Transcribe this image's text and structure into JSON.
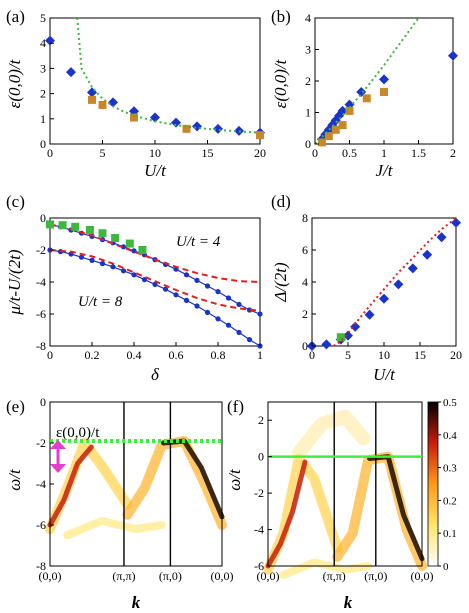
{
  "chart_data": [
    {
      "panel": "(a)",
      "type": "scatter",
      "xlabel": "U/t",
      "ylabel": "ε(0,0)/t",
      "xlim": [
        0,
        20
      ],
      "ylim": [
        0,
        5
      ],
      "xticks": [
        "0",
        "5",
        "10",
        "15",
        "20"
      ],
      "yticks": [
        "0",
        "1",
        "2",
        "3",
        "4",
        "5"
      ],
      "series": [
        {
          "marker": "diamond",
          "color": "#1a33c8",
          "x": [
            0,
            2,
            4,
            6,
            8,
            10,
            12,
            14,
            16,
            18,
            20
          ],
          "y": [
            4.1,
            2.85,
            2.05,
            1.65,
            1.3,
            1.05,
            0.85,
            0.7,
            0.6,
            0.52,
            0.45
          ]
        },
        {
          "marker": "square",
          "color": "#c8882a",
          "x": [
            4,
            5,
            8,
            13,
            20
          ],
          "y": [
            1.75,
            1.55,
            1.05,
            0.6,
            0.35
          ]
        },
        {
          "style": "dotted-line",
          "color": "#3cb83c",
          "x": [
            2.6,
            3,
            4,
            5,
            6,
            7,
            8,
            10,
            12,
            14,
            16,
            18,
            20
          ],
          "y": [
            5.0,
            3.0,
            2.25,
            1.8,
            1.5,
            1.29,
            1.13,
            0.9,
            0.75,
            0.64,
            0.56,
            0.5,
            0.45
          ]
        }
      ]
    },
    {
      "panel": "(b)",
      "type": "scatter",
      "xlabel": "J/t",
      "ylabel": "ε(0,0)/t",
      "xlim": [
        0,
        2
      ],
      "ylim": [
        0,
        4
      ],
      "xticks": [
        "0",
        "0.5",
        "1",
        "1.5",
        "2"
      ],
      "yticks": [
        "0",
        "1",
        "2",
        "3",
        "4"
      ],
      "series": [
        {
          "marker": "diamond",
          "color": "#1a33c8",
          "x": [
            0.1,
            0.15,
            0.2,
            0.25,
            0.3,
            0.35,
            0.4,
            0.5,
            0.67,
            1.0,
            2.0
          ],
          "y": [
            0.15,
            0.3,
            0.45,
            0.6,
            0.75,
            0.9,
            1.05,
            1.25,
            1.65,
            2.05,
            2.8
          ]
        },
        {
          "marker": "square",
          "color": "#c8882a",
          "x": [
            0.1,
            0.2,
            0.3,
            0.4,
            0.5,
            0.75,
            1.0
          ],
          "y": [
            0.05,
            0.25,
            0.45,
            0.6,
            1.05,
            1.45,
            1.65
          ]
        },
        {
          "style": "dotted-line",
          "color": "#3cb83c",
          "x": [
            0,
            0.25,
            0.5,
            0.75,
            1.0,
            1.25,
            1.5
          ],
          "y": [
            0,
            0.55,
            1.15,
            1.8,
            2.5,
            3.25,
            4.0
          ]
        }
      ]
    },
    {
      "panel": "(c)",
      "type": "line",
      "xlabel": "δ",
      "ylabel": "μ/t-U/(2t)",
      "xlim": [
        0,
        1
      ],
      "ylim": [
        -8,
        0
      ],
      "xticks": [
        "0",
        "0.2",
        "0.4",
        "0.6",
        "0.8",
        "1"
      ],
      "yticks": [
        "-8",
        "-6",
        "-4",
        "-2",
        "0"
      ],
      "annotations": [
        "U/t = 4",
        "U/t = 8"
      ],
      "series": [
        {
          "style": "line+points",
          "color": "#1a33c8",
          "x": [
            0,
            0.05,
            0.1,
            0.15,
            0.2,
            0.25,
            0.3,
            0.35,
            0.4,
            0.45,
            0.5,
            0.55,
            0.6,
            0.65,
            0.7,
            0.75,
            0.8,
            0.85,
            0.9,
            0.95,
            1.0
          ],
          "y": [
            -0.4,
            -0.55,
            -0.75,
            -0.95,
            -1.15,
            -1.35,
            -1.55,
            -1.8,
            -2.05,
            -2.3,
            -2.6,
            -2.9,
            -3.2,
            -3.55,
            -3.9,
            -4.25,
            -4.6,
            -5.0,
            -5.4,
            -5.75,
            -6.0
          ]
        },
        {
          "style": "line+points",
          "color": "#1a33c8",
          "x": [
            0,
            0.05,
            0.1,
            0.15,
            0.2,
            0.25,
            0.3,
            0.35,
            0.4,
            0.45,
            0.5,
            0.55,
            0.6,
            0.65,
            0.7,
            0.75,
            0.8,
            0.85,
            0.9,
            0.95,
            1.0
          ],
          "y": [
            -2.0,
            -2.1,
            -2.25,
            -2.45,
            -2.65,
            -2.85,
            -3.05,
            -3.3,
            -3.55,
            -3.85,
            -4.15,
            -4.45,
            -4.8,
            -5.15,
            -5.5,
            -5.9,
            -6.3,
            -6.7,
            -7.15,
            -7.6,
            -8.0
          ]
        },
        {
          "style": "dashed-line",
          "color": "#e02020",
          "x": [
            0,
            0.1,
            0.2,
            0.3,
            0.4,
            0.5,
            0.6,
            0.7,
            0.8,
            0.9,
            1.0
          ],
          "y": [
            -0.4,
            -0.7,
            -1.1,
            -1.6,
            -2.1,
            -2.6,
            -3.05,
            -3.45,
            -3.75,
            -3.95,
            -4.0
          ]
        },
        {
          "style": "dashed-line",
          "color": "#e02020",
          "x": [
            0,
            0.1,
            0.2,
            0.3,
            0.4,
            0.5,
            0.6,
            0.7,
            0.8,
            0.9,
            1.0
          ],
          "y": [
            -2.0,
            -2.1,
            -2.4,
            -2.85,
            -3.4,
            -3.95,
            -4.5,
            -5.0,
            -5.4,
            -5.65,
            -5.8
          ]
        },
        {
          "marker": "square",
          "color": "#3cb83c",
          "x": [
            0,
            0.06,
            0.12,
            0.19,
            0.25,
            0.31,
            0.38,
            0.44
          ],
          "y": [
            -0.4,
            -0.45,
            -0.55,
            -0.75,
            -0.95,
            -1.25,
            -1.6,
            -2.0
          ]
        }
      ]
    },
    {
      "panel": "(d)",
      "type": "scatter",
      "xlabel": "U/t",
      "ylabel": "Δ/(2t)",
      "xlim": [
        0,
        20
      ],
      "ylim": [
        0,
        8
      ],
      "xticks": [
        "0",
        "5",
        "10",
        "15",
        "20"
      ],
      "yticks": [
        "0",
        "2",
        "4",
        "6",
        "8"
      ],
      "series": [
        {
          "marker": "diamond",
          "color": "#1a33c8",
          "x": [
            0,
            2,
            4,
            5,
            6,
            8,
            10,
            12,
            14,
            16,
            18,
            20
          ],
          "y": [
            0,
            0.1,
            0.4,
            0.65,
            1.2,
            1.95,
            2.95,
            3.85,
            4.85,
            5.7,
            6.8,
            7.7
          ]
        },
        {
          "marker": "square",
          "color": "#3cb83c",
          "x": [
            4
          ],
          "y": [
            0.55
          ]
        },
        {
          "style": "dotted-line",
          "color": "#e02020",
          "x": [
            3,
            4,
            5,
            6,
            8,
            10,
            12,
            14,
            16,
            18,
            20
          ],
          "y": [
            0,
            0.3,
            0.8,
            1.4,
            2.5,
            3.55,
            4.6,
            5.5,
            6.45,
            7.3,
            8.0
          ]
        }
      ]
    },
    {
      "panel": "(e)",
      "type": "heatmap",
      "xlabel": "k",
      "ylabel": "ω/t",
      "ylim": [
        -8,
        0
      ],
      "xticks": [
        "(0,0)",
        "(π,π)",
        "(π,0)",
        "(0,0)"
      ],
      "yticks": [
        "-8",
        "-6",
        "-4",
        "-2",
        "0"
      ],
      "annotation": "ε(0,0)/t",
      "reference_line": {
        "y": -1.9,
        "style": "dotted",
        "color": "#3cf03c"
      }
    },
    {
      "panel": "(f)",
      "type": "heatmap",
      "xlabel": "k",
      "ylabel": "ω/t",
      "ylim": [
        -6,
        3
      ],
      "xticks": [
        "(0,0)",
        "(π,π)",
        "(π,0)",
        "(0,0)"
      ],
      "yticks": [
        "-6",
        "-4",
        "-2",
        "0",
        "2"
      ],
      "reference_line": {
        "y": 0,
        "style": "solid",
        "color": "#3cf03c"
      },
      "colorbar": {
        "min": 0,
        "max": 0.5,
        "ticks": [
          "0",
          "0.1",
          "0.2",
          "0.3",
          "0.4",
          "0.5"
        ]
      }
    }
  ]
}
